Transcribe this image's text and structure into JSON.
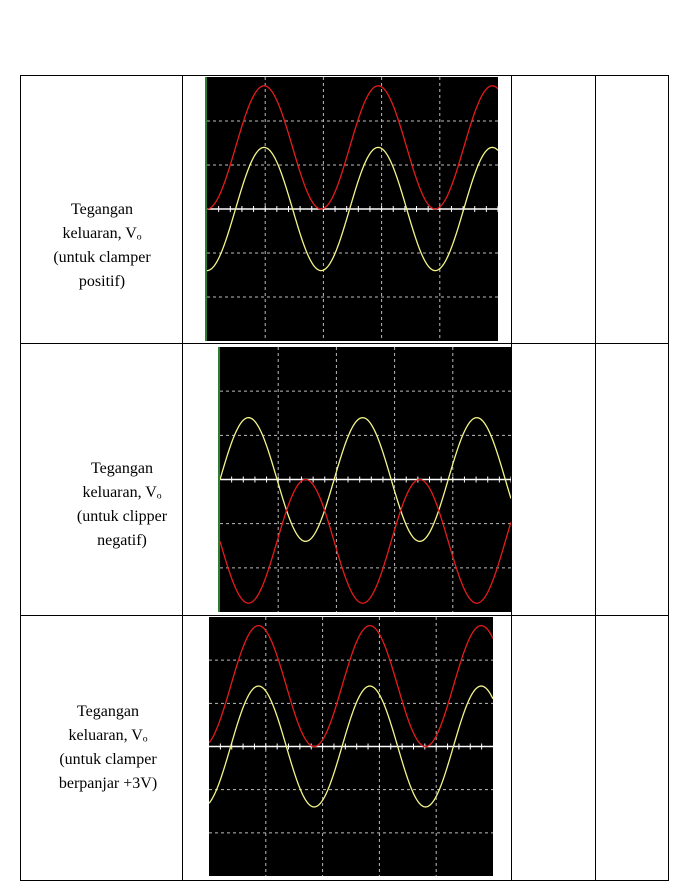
{
  "rows": [
    {
      "label_lines": [
        "Tegangan",
        "keluaran, Vₒ",
        "(untuk clamper",
        "positif)"
      ],
      "traces": [
        {
          "color": "#e31b1b",
          "cycles": 2.55,
          "amplitude_divs": 1.4,
          "offset_divs": 1.4,
          "phase_deg": -90
        },
        {
          "color": "#f5f58a",
          "cycles": 2.55,
          "amplitude_divs": 1.4,
          "offset_divs": 0.0,
          "phase_deg": -90
        }
      ]
    },
    {
      "label_lines": [
        "Tegangan",
        "keluaran, Vₒ",
        "(untuk clipper",
        "negatif)"
      ],
      "traces": [
        {
          "color": "#f5f58a",
          "cycles": 2.55,
          "amplitude_divs": 1.4,
          "offset_divs": 0.0,
          "phase_deg": 0
        },
        {
          "color": "#e31b1b",
          "cycles": 2.55,
          "amplitude_divs": 1.4,
          "offset_divs": -1.4,
          "phase_deg": -180
        }
      ]
    },
    {
      "label_lines": [
        "Tegangan",
        "keluaran, Vₒ",
        "(untuk clamper",
        "berpanjar  +3V)"
      ],
      "traces": [
        {
          "color": "#e31b1b",
          "cycles": 2.55,
          "amplitude_divs": 1.4,
          "offset_divs": 1.4,
          "phase_deg": -70
        },
        {
          "color": "#f5f58a",
          "cycles": 2.55,
          "amplitude_divs": 1.4,
          "offset_divs": 0.0,
          "phase_deg": -70
        }
      ]
    }
  ],
  "scope": {
    "background": "#000000",
    "grid_color": "#bbbbbb",
    "x_divisions": 5,
    "y_divisions": 6
  }
}
